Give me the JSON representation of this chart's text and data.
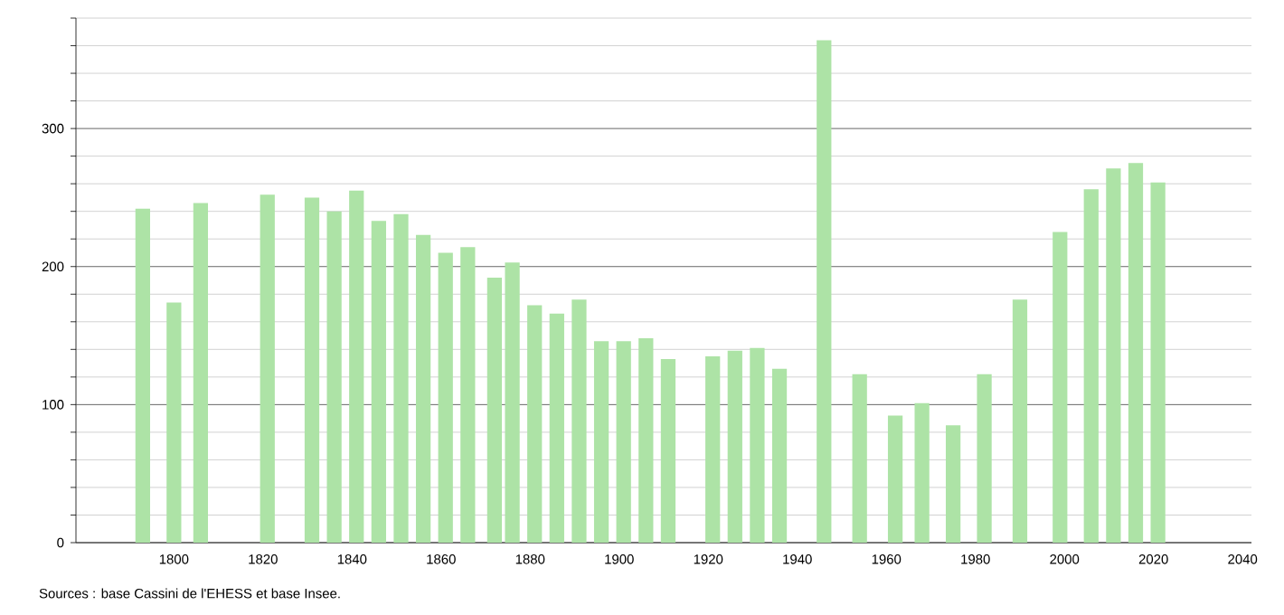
{
  "chart_data": {
    "type": "bar",
    "x": [
      1793,
      1800,
      1806,
      1821,
      1831,
      1836,
      1841,
      1846,
      1851,
      1856,
      1861,
      1866,
      1872,
      1876,
      1881,
      1886,
      1891,
      1896,
      1901,
      1906,
      1911,
      1921,
      1926,
      1931,
      1936,
      1946,
      1954,
      1962,
      1968,
      1975,
      1982,
      1990,
      1999,
      2006,
      2011,
      2016,
      2021
    ],
    "values": [
      242,
      174,
      246,
      252,
      250,
      240,
      255,
      233,
      238,
      223,
      210,
      214,
      192,
      203,
      172,
      166,
      176,
      146,
      146,
      148,
      133,
      135,
      139,
      141,
      126,
      364,
      122,
      92,
      101,
      85,
      122,
      176,
      225,
      256,
      271,
      275,
      261
    ],
    "color": "#ade3a6",
    "xlim": [
      1778,
      2042
    ],
    "xticks": [
      1800,
      1820,
      1840,
      1860,
      1880,
      1900,
      1920,
      1940,
      1960,
      1980,
      2000,
      2020,
      2040
    ],
    "ylim": [
      0,
      380
    ],
    "yticks": [
      0,
      {
        "value": 20,
        "label": null
      },
      {
        "value": 40,
        "label": null
      },
      {
        "value": 60,
        "label": null
      },
      {
        "value": 80,
        "label": null
      },
      100,
      {
        "value": 120,
        "label": null
      },
      {
        "value": 140,
        "label": null
      },
      {
        "value": 160,
        "label": null
      },
      {
        "value": 180,
        "label": null
      },
      200,
      {
        "value": 220,
        "label": null
      },
      {
        "value": 240,
        "label": null
      },
      {
        "value": 260,
        "label": null
      },
      {
        "value": 280,
        "label": null
      },
      300,
      {
        "value": 320,
        "label": null
      },
      {
        "value": 340,
        "label": null
      },
      {
        "value": 360,
        "label": null
      },
      {
        "value": 380,
        "label": null
      }
    ],
    "grid": "y",
    "annotations": [
      "Sources : base Cassini de l'EHESS et base Insee."
    ]
  }
}
